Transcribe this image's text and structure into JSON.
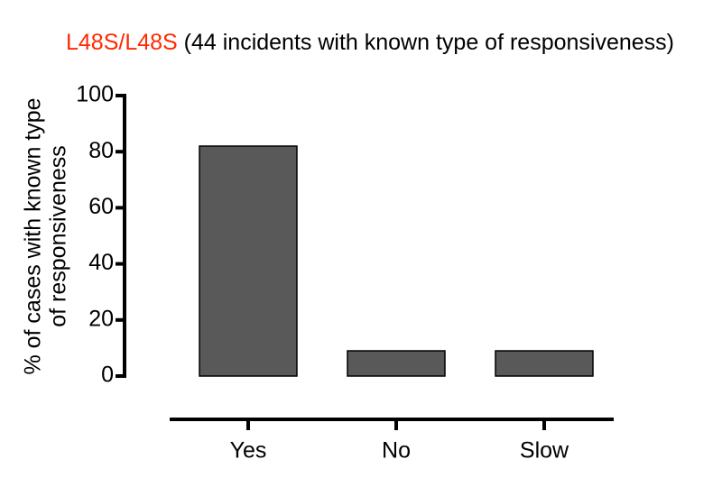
{
  "chart_data": {
    "type": "bar",
    "title_prefix": "L48S/L48S",
    "title_prefix_color": "#ff2a00",
    "title": "(44 incidents with known type of responsiveness)",
    "y_label": [
      "% of cases with  known type",
      "of responsiveness"
    ],
    "categories": [
      "Yes",
      "No",
      "Slow"
    ],
    "values": [
      82,
      9,
      9
    ],
    "color": "#595959",
    "ylim": [
      0,
      100
    ],
    "yticks": [
      0,
      20,
      40,
      60,
      80,
      100
    ],
    "grid": false
  }
}
